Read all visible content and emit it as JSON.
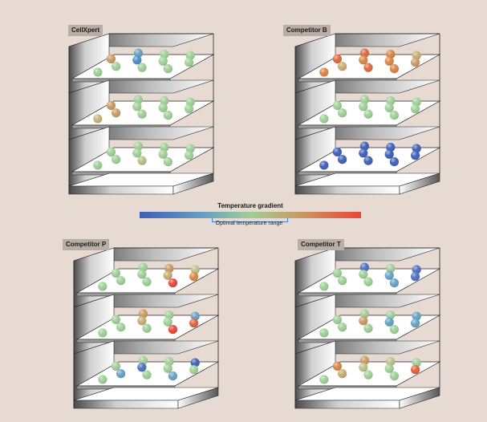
{
  "colors": {
    "background": "#e7dad2",
    "label_bg": "#b9aea6",
    "gradient_stops": [
      "#3f5fb8",
      "#68a2c2",
      "#9fcf96",
      "#c99a63",
      "#e9463a"
    ],
    "optimal_marker": "#3c86c9"
  },
  "legend": {
    "title": "Temperature gradient",
    "optimal_label": "Optimal temperature range"
  },
  "incubators": [
    {
      "name": "CellXpert",
      "shelves": [
        [
          "#68a2c2",
          "#9fcf96",
          "#9fcf96",
          "#c99a63",
          "#4f8dc2",
          "#9fcf96",
          "#9fcf96",
          "#9fcf96",
          "#9fcf96",
          "#9fcf96",
          "#9fcf96"
        ],
        [
          "#9fcf96",
          "#9fcf96",
          "#9fcf96",
          "#c99a63",
          "#9fcf96",
          "#9fcf96",
          "#9fcf96",
          "#c99a63",
          "#9fcf96",
          "#9fcf96",
          "#c8b37a"
        ],
        [
          "#9fcf96",
          "#9fcf96",
          "#9fcf96",
          "#9fcf96",
          "#9fcf96",
          "#9fcf96",
          "#9fcf96",
          "#9fcf96",
          "#b9c188",
          "#9fcf96",
          "#9fcf96"
        ]
      ]
    },
    {
      "name": "Competitor B",
      "shelves": [
        [
          "#dc6a3e",
          "#d98545",
          "#c8ab72",
          "#dc6a3e",
          "#d98545",
          "#d98545",
          "#c99a63",
          "#c8ab72",
          "#dc6a3e",
          "#d98545",
          "#d98545"
        ],
        [
          "#9fcf96",
          "#9fcf96",
          "#9fcf96",
          "#9fcf96",
          "#9fcf96",
          "#9fcf96",
          "#9fcf96",
          "#9fcf96",
          "#9fcf96",
          "#9fcf96",
          "#9fcf96"
        ],
        [
          "#3f5fb8",
          "#3f5fb8",
          "#3f5fb8",
          "#3f5fb8",
          "#3f5fb8",
          "#3f5fb8",
          "#3f5fb8",
          "#3f5fb8",
          "#3f5fb8",
          "#3f5fb8",
          "#3f5fb8"
        ]
      ]
    },
    {
      "name": "Competitor P",
      "shelves": [
        [
          "#9fcf96",
          "#c99a63",
          "#b9c188",
          "#9fcf96",
          "#9fcf96",
          "#c8ab72",
          "#d98545",
          "#9fcf96",
          "#9fcf96",
          "#e9463a",
          "#9fcf96"
        ],
        [
          "#c99a63",
          "#9fcf96",
          "#68a2c2",
          "#9fcf96",
          "#c8ab72",
          "#9fcf96",
          "#e0603a",
          "#9fcf96",
          "#9fcf96",
          "#e9463a",
          "#9fcf96"
        ],
        [
          "#9fcf96",
          "#9fcf96",
          "#3f5fb8",
          "#9fcf96",
          "#4c6fbf",
          "#9fcf96",
          "#9fcf96",
          "#68a2c2",
          "#9fcf96",
          "#68a2c2",
          "#9fcf96"
        ]
      ]
    },
    {
      "name": "Competitor T",
      "shelves": [
        [
          "#4c6fbf",
          "#9fcf96",
          "#4c6fbf",
          "#9fcf96",
          "#9fcf96",
          "#68a2c2",
          "#4c6fbf",
          "#9fcf96",
          "#9fcf96",
          "#68a2c2",
          "#9fcf96"
        ],
        [
          "#9fcf96",
          "#9fcf96",
          "#68a2c2",
          "#9fcf96",
          "#c99a63",
          "#68a2c2",
          "#68a2c2",
          "#9fcf96",
          "#9fcf96",
          "#9fcf96",
          "#9fcf96"
        ],
        [
          "#c99a63",
          "#b9c188",
          "#9fcf96",
          "#d98545",
          "#b9c188",
          "#9fcf96",
          "#e0603a",
          "#c8ab72",
          "#9fcf96",
          "#9fcf96",
          "#9fcf96"
        ]
      ]
    }
  ]
}
